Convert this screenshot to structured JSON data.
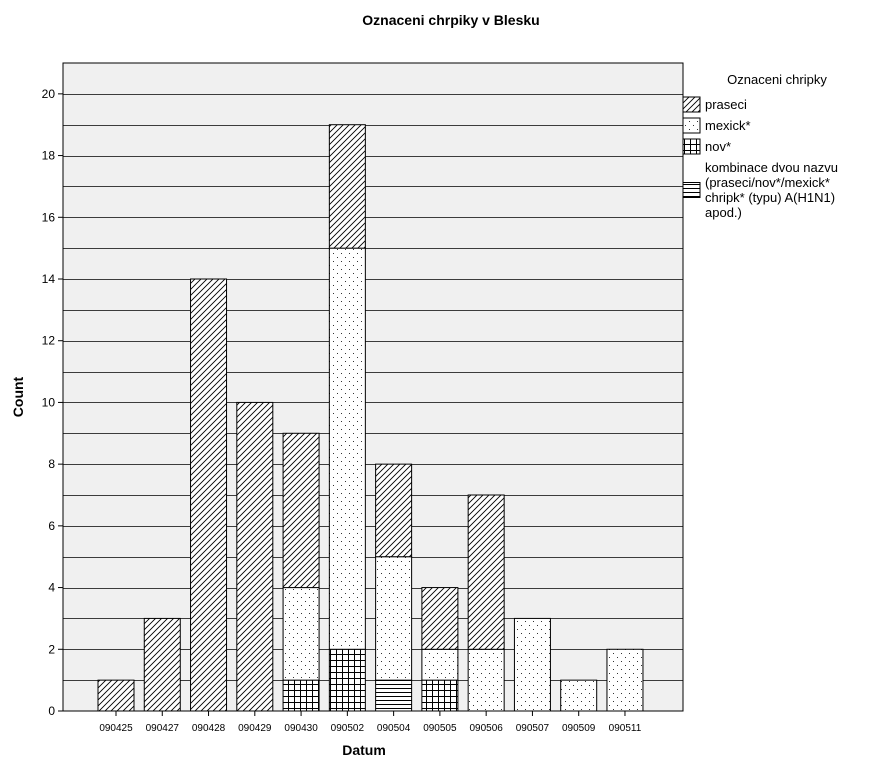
{
  "chart_data": {
    "type": "bar",
    "stacked": true,
    "title": "Oznaceni chrpiky v Blesku",
    "xlabel": "Datum",
    "ylabel": "Count",
    "ylim": [
      0,
      21
    ],
    "yticks": [
      0,
      2,
      4,
      6,
      8,
      10,
      12,
      14,
      16,
      18,
      20
    ],
    "grid": true,
    "legend_position": "right",
    "legend_title": "Oznaceni chripky",
    "categories": [
      "090425",
      "090427",
      "090428",
      "090429",
      "090430",
      "090502",
      "090504",
      "090505",
      "090506",
      "090507",
      "090509",
      "090511"
    ],
    "series": [
      {
        "name": "kombinace dvou nazvu (praseci/nov*/mexick* chripk* (typu) A(H1N1) apod.)",
        "pattern": "hlines",
        "values": [
          0,
          0,
          0,
          0,
          0,
          0,
          1,
          0,
          0,
          0,
          0,
          0
        ]
      },
      {
        "name": "nov*",
        "pattern": "grid",
        "values": [
          0,
          0,
          0,
          0,
          1,
          2,
          0,
          1,
          0,
          0,
          0,
          0
        ]
      },
      {
        "name": "mexick*",
        "pattern": "dots",
        "values": [
          0,
          0,
          0,
          0,
          3,
          13,
          4,
          1,
          2,
          3,
          1,
          2
        ]
      },
      {
        "name": "praseci",
        "pattern": "diag",
        "values": [
          1,
          3,
          14,
          10,
          5,
          4,
          3,
          2,
          5,
          0,
          0,
          0
        ]
      }
    ],
    "legend_order": [
      "praseci",
      "mexick*",
      "nov*",
      "kombinace dvou nazvu (praseci/nov*/mexick* chripk* (typu) A(H1N1) apod.)"
    ],
    "legend_lines": [
      [
        "praseci"
      ],
      [
        "mexick*"
      ],
      [
        "nov*"
      ],
      [
        "kombinace dvou nazvu",
        "(praseci/nov*/mexick*",
        "chripk* (typu) A(H1N1)",
        "apod.)"
      ]
    ],
    "colors": {
      "plot_background": "#f0f0f0",
      "bar_fill": "#ffffff",
      "stroke": "#000000"
    }
  }
}
